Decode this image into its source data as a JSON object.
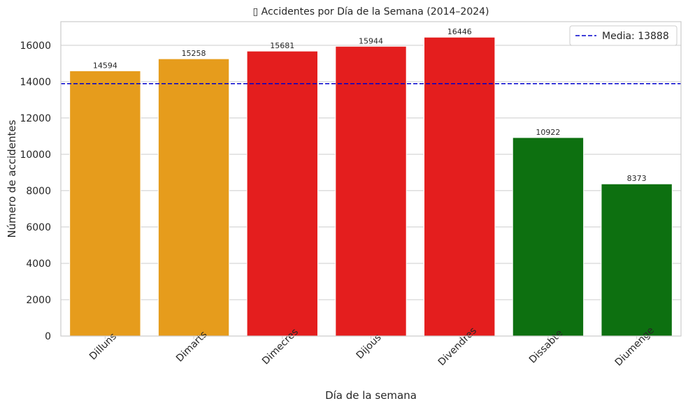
{
  "chart_data": {
    "type": "bar",
    "title": "▯ Accidentes por Día de la Semana (2014–2024)",
    "xlabel": "Día de la semana",
    "ylabel": "Número de accidentes",
    "categories": [
      "Dilluns",
      "Dimarts",
      "Dimecres",
      "Dijous",
      "Divendres",
      "Dissabte",
      "Diumenge"
    ],
    "values": [
      14594,
      15258,
      15681,
      15944,
      16446,
      10922,
      8373
    ],
    "value_labels": [
      "14594",
      "15258",
      "15681",
      "15944",
      "16446",
      "10922",
      "8373"
    ],
    "bar_colors": [
      "#e69c1c",
      "#e69c1c",
      "#e41e1e",
      "#e41e1e",
      "#e41e1e",
      "#0d7010",
      "#0d7010"
    ],
    "ylim": [
      0,
      17300
    ],
    "yticks": [
      0,
      2000,
      4000,
      6000,
      8000,
      10000,
      12000,
      14000,
      16000
    ],
    "grid": "y",
    "mean_line": {
      "value": 13888,
      "color": "#0000cc",
      "style": "dashed"
    },
    "legend": {
      "position": "top-right",
      "entries": [
        "Media: 13888"
      ]
    }
  }
}
